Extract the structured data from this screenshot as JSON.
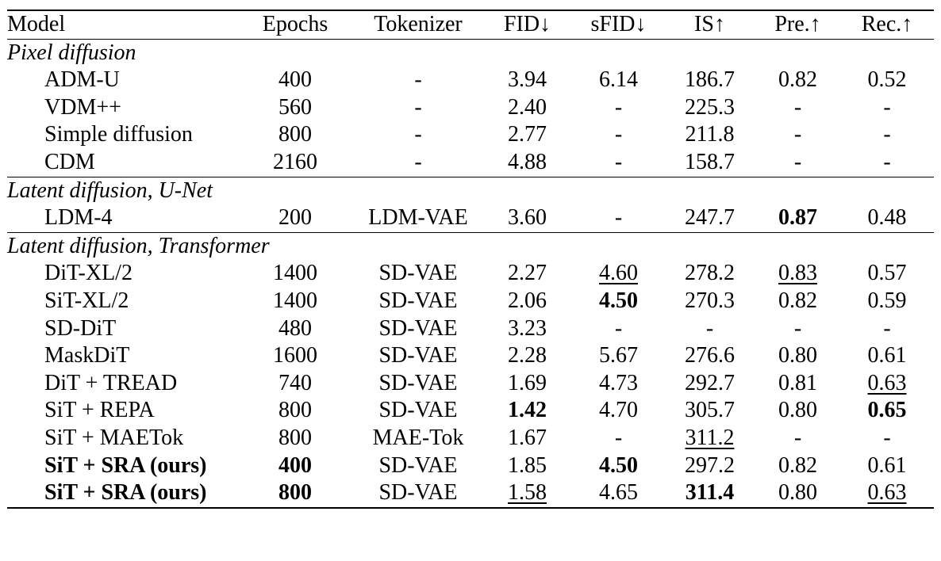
{
  "columns": [
    "Model",
    "Epochs",
    "Tokenizer",
    "FID↓",
    "sFID↓",
    "IS↑",
    "Pre.↑",
    "Rec.↑"
  ],
  "sections": [
    {
      "title": "Pixel diffusion",
      "rows": [
        {
          "model": "ADM-U",
          "epochs": "400",
          "tokenizer": "-",
          "fid": "3.94",
          "sfid": "6.14",
          "is": "186.7",
          "pre": "0.82",
          "rec": "0.52"
        },
        {
          "model": "VDM++",
          "epochs": "560",
          "tokenizer": "-",
          "fid": "2.40",
          "sfid": "-",
          "is": "225.3",
          "pre": "-",
          "rec": "-"
        },
        {
          "model": "Simple diffusion",
          "epochs": "800",
          "tokenizer": "-",
          "fid": "2.77",
          "sfid": "-",
          "is": "211.8",
          "pre": "-",
          "rec": "-"
        },
        {
          "model": "CDM",
          "epochs": "2160",
          "tokenizer": "-",
          "fid": "4.88",
          "sfid": "-",
          "is": "158.7",
          "pre": "-",
          "rec": "-"
        }
      ]
    },
    {
      "title": "Latent diffusion, U-Net",
      "rows": [
        {
          "model": "LDM-4",
          "epochs": "200",
          "tokenizer": "LDM-VAE",
          "fid": "3.60",
          "sfid": "-",
          "is": "247.7",
          "pre": "0.87",
          "rec": "0.48",
          "bold": [
            "pre"
          ]
        }
      ]
    },
    {
      "title": "Latent diffusion, Transformer",
      "rows": [
        {
          "model": "DiT-XL/2",
          "epochs": "1400",
          "tokenizer": "SD-VAE",
          "fid": "2.27",
          "sfid": "4.60",
          "is": "278.2",
          "pre": "0.83",
          "rec": "0.57",
          "underline": [
            "sfid",
            "pre"
          ]
        },
        {
          "model": "SiT-XL/2",
          "epochs": "1400",
          "tokenizer": "SD-VAE",
          "fid": "2.06",
          "sfid": "4.50",
          "is": "270.3",
          "pre": "0.82",
          "rec": "0.59",
          "bold": [
            "sfid"
          ]
        },
        {
          "model": "SD-DiT",
          "epochs": "480",
          "tokenizer": "SD-VAE",
          "fid": "3.23",
          "sfid": "-",
          "is": "-",
          "pre": "-",
          "rec": "-"
        },
        {
          "model": "MaskDiT",
          "epochs": "1600",
          "tokenizer": "SD-VAE",
          "fid": "2.28",
          "sfid": "5.67",
          "is": "276.6",
          "pre": "0.80",
          "rec": "0.61"
        },
        {
          "model": "DiT + TREAD",
          "epochs": "740",
          "tokenizer": "SD-VAE",
          "fid": "1.69",
          "sfid": "4.73",
          "is": "292.7",
          "pre": "0.81",
          "rec": "0.63",
          "underline": [
            "rec"
          ]
        },
        {
          "model": "SiT + REPA",
          "epochs": "800",
          "tokenizer": "SD-VAE",
          "fid": "1.42",
          "sfid": "4.70",
          "is": "305.7",
          "pre": "0.80",
          "rec": "0.65",
          "bold": [
            "fid",
            "rec"
          ]
        },
        {
          "model": "SiT + MAETok",
          "epochs": "800",
          "tokenizer": "MAE-Tok",
          "fid": "1.67",
          "sfid": "-",
          "is": "311.2",
          "pre": "-",
          "rec": "-",
          "underline": [
            "is"
          ]
        },
        {
          "model": "SiT + SRA (ours)",
          "epochs": "400",
          "tokenizer": "SD-VAE",
          "fid": "1.85",
          "sfid": "4.50",
          "is": "297.2",
          "pre": "0.82",
          "rec": "0.61",
          "bold": [
            "model",
            "epochs",
            "sfid"
          ]
        },
        {
          "model": "SiT + SRA (ours)",
          "epochs": "800",
          "tokenizer": "SD-VAE",
          "fid": "1.58",
          "sfid": "4.65",
          "is": "311.4",
          "pre": "0.80",
          "rec": "0.63",
          "bold": [
            "model",
            "epochs",
            "is"
          ],
          "underline": [
            "fid",
            "rec"
          ]
        }
      ]
    }
  ]
}
